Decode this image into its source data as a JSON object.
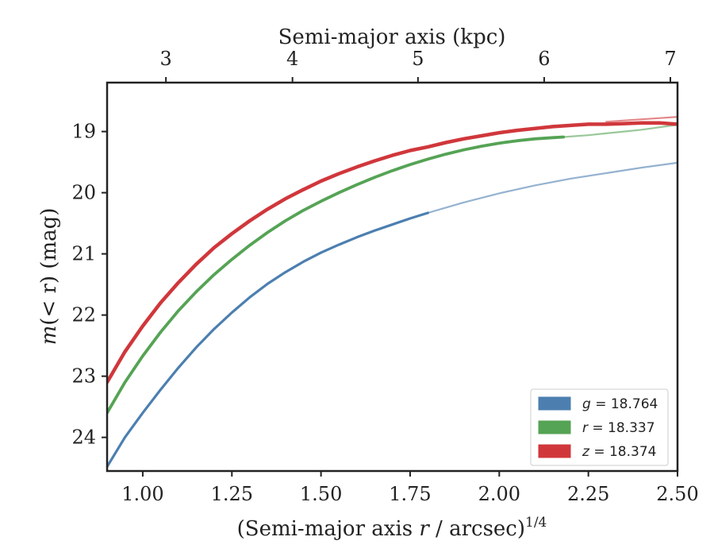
{
  "chart_data": {
    "type": "line",
    "xlabel_top": "Semi-major axis (kpc)",
    "ylabel_italic": "m",
    "ylabel_rest": "(< r) (mag)",
    "xlabel_bottom_main": "(Semi-major axis ",
    "xlabel_bottom_r": "r",
    "xlabel_bottom_rest": " / arcsec)",
    "xlabel_bottom_sup": "1/4",
    "xlim": [
      0.9,
      2.5
    ],
    "ylim": [
      24.55,
      18.2
    ],
    "x_ticks": [
      1.0,
      1.25,
      1.5,
      1.75,
      2.0,
      2.25,
      2.5
    ],
    "x_tick_labels": [
      "1.00",
      "1.25",
      "1.50",
      "1.75",
      "2.00",
      "2.25",
      "2.50"
    ],
    "y_ticks": [
      19,
      20,
      21,
      22,
      23,
      24
    ],
    "y_tick_labels": [
      "19",
      "20",
      "21",
      "22",
      "23",
      "24"
    ],
    "top_ticks_kpc": [
      3,
      4,
      5,
      6,
      7
    ],
    "top_tick_labels": [
      "3",
      "4",
      "5",
      "6",
      "7"
    ],
    "top_ticks_x": [
      1.065,
      1.42,
      1.772,
      2.126,
      2.48
    ],
    "legend_position": "lower-right",
    "series": [
      {
        "name": "g = 18.764",
        "band": "g",
        "value": "18.764",
        "color": "#4c7fb0",
        "data_x": [
          0.9,
          0.95,
          1.0,
          1.05,
          1.1,
          1.15,
          1.2,
          1.25,
          1.3,
          1.35,
          1.4,
          1.45,
          1.5,
          1.55,
          1.6,
          1.65,
          1.7,
          1.75,
          1.8
        ],
        "data_y": [
          24.48,
          24.0,
          23.6,
          23.22,
          22.86,
          22.53,
          22.23,
          21.96,
          21.71,
          21.49,
          21.3,
          21.13,
          20.98,
          20.85,
          20.73,
          20.62,
          20.52,
          20.42,
          20.33
        ],
        "model_x": [
          1.8,
          1.9,
          2.0,
          2.1,
          2.2,
          2.3,
          2.4,
          2.5
        ],
        "model_y": [
          20.33,
          20.16,
          20.01,
          19.88,
          19.77,
          19.68,
          19.59,
          19.51
        ]
      },
      {
        "name": "r = 18.337",
        "band": "r",
        "value": "18.337",
        "color": "#55a355",
        "data_x": [
          0.9,
          0.95,
          1.0,
          1.05,
          1.1,
          1.15,
          1.2,
          1.25,
          1.3,
          1.35,
          1.4,
          1.45,
          1.5,
          1.55,
          1.6,
          1.65,
          1.7,
          1.75,
          1.8,
          1.85,
          1.9,
          1.95,
          2.0,
          2.05,
          2.1,
          2.15,
          2.18
        ],
        "data_y": [
          23.6,
          23.1,
          22.67,
          22.28,
          21.93,
          21.62,
          21.34,
          21.09,
          20.86,
          20.65,
          20.46,
          20.29,
          20.14,
          20.0,
          19.87,
          19.75,
          19.64,
          19.54,
          19.45,
          19.37,
          19.3,
          19.24,
          19.19,
          19.15,
          19.12,
          19.1,
          19.09
        ],
        "model_x": [
          2.18,
          2.25,
          2.3,
          2.35,
          2.4,
          2.45,
          2.5
        ],
        "model_y": [
          19.09,
          19.06,
          19.03,
          19.0,
          18.97,
          18.93,
          18.89
        ]
      },
      {
        "name": "z = 18.374",
        "band": "z",
        "value": "18.374",
        "color": "#d0373b",
        "data_x": [
          0.9,
          0.95,
          1.0,
          1.05,
          1.1,
          1.15,
          1.2,
          1.25,
          1.3,
          1.35,
          1.4,
          1.45,
          1.5,
          1.55,
          1.6,
          1.65,
          1.7,
          1.75,
          1.8,
          1.85,
          1.9,
          1.95,
          2.0,
          2.05,
          2.1,
          2.15,
          2.2,
          2.25,
          2.3,
          2.35,
          2.4,
          2.45,
          2.5
        ],
        "data_y": [
          23.1,
          22.6,
          22.18,
          21.8,
          21.47,
          21.17,
          20.9,
          20.67,
          20.46,
          20.27,
          20.1,
          19.95,
          19.81,
          19.69,
          19.58,
          19.48,
          19.39,
          19.31,
          19.25,
          19.18,
          19.12,
          19.07,
          19.02,
          18.98,
          18.95,
          18.92,
          18.9,
          18.88,
          18.88,
          18.87,
          18.86,
          18.86,
          18.88
        ],
        "model_x": [
          2.3,
          2.35,
          2.4,
          2.45,
          2.5
        ],
        "model_y": [
          18.84,
          18.82,
          18.8,
          18.78,
          18.76
        ]
      }
    ]
  }
}
